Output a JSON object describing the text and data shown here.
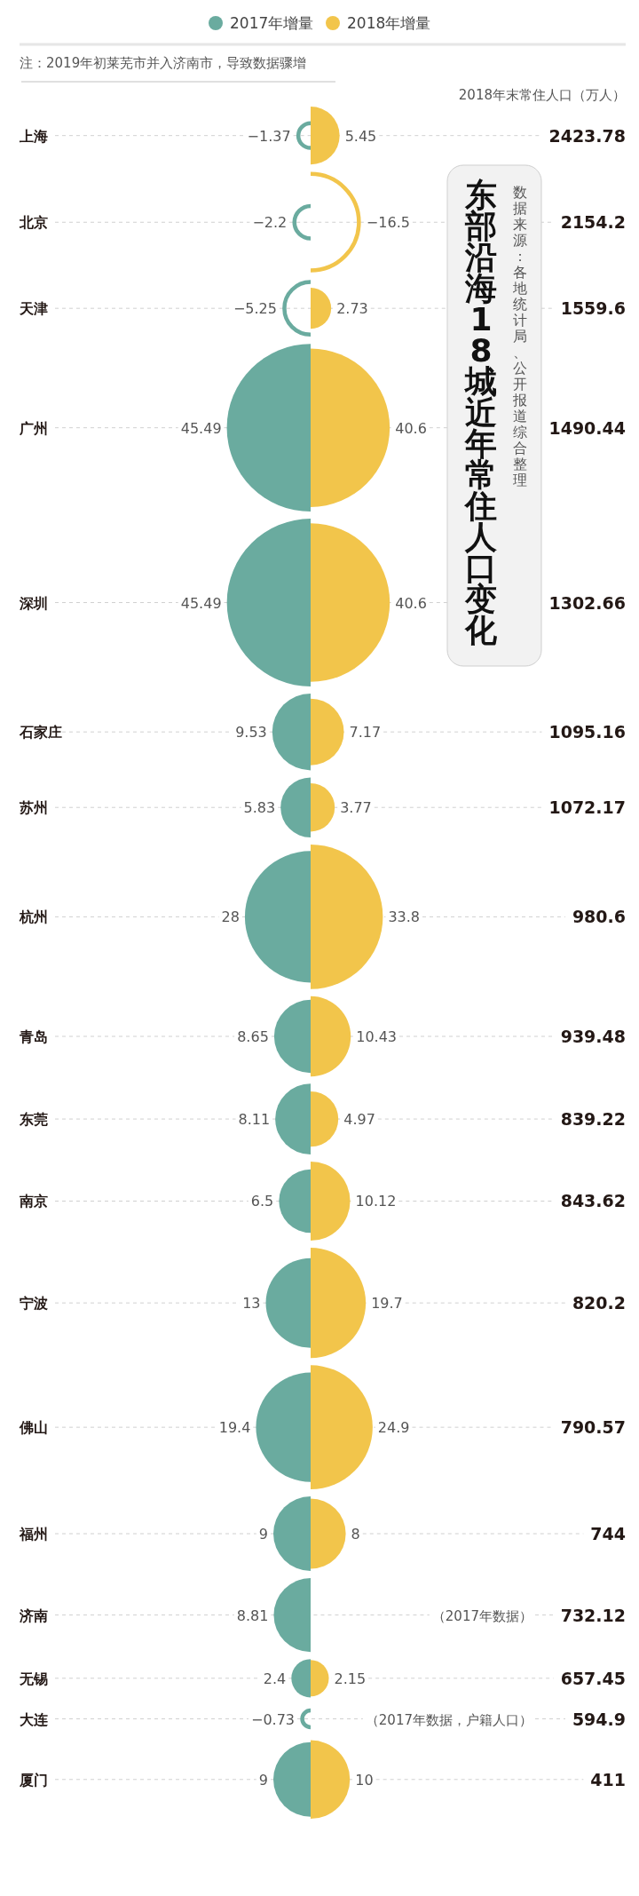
{
  "chart_data": {
    "type": "other",
    "title": "东部沿海18城近年常住人口变化",
    "legend": "top",
    "data_labels": true,
    "categories": [
      "上海",
      "北京",
      "天津",
      "广州",
      "深圳",
      "石家庄",
      "苏州",
      "杭州",
      "青岛",
      "东莞",
      "南京",
      "宁波",
      "佛山",
      "福州",
      "济南",
      "无锡",
      "大连",
      "厦门"
    ],
    "series": [
      {
        "name": "2017年增量",
        "color": "#6aab9f",
        "values": [
          -1.37,
          -2.2,
          -5.25,
          45.49,
          45.49,
          9.53,
          5.83,
          28,
          8.65,
          8.11,
          6.5,
          13,
          19.4,
          9,
          8.81,
          2.4,
          -0.73,
          9
        ]
      },
      {
        "name": "2018年增量",
        "color": "#f2c54b",
        "values": [
          5.45,
          -16.5,
          2.73,
          40.6,
          40.6,
          7.17,
          3.77,
          33.8,
          10.43,
          4.97,
          10.12,
          19.7,
          24.9,
          8,
          null,
          2.15,
          null,
          10
        ]
      },
      {
        "name": "2018年末常住人口（万人）",
        "values": [
          2423.78,
          2154.2,
          1559.6,
          1490.44,
          1302.66,
          1095.16,
          1072.17,
          980.6,
          939.48,
          839.22,
          843.62,
          820.2,
          790.57,
          744,
          732.12,
          657.45,
          594.9,
          411
        ]
      }
    ],
    "annotations": [
      "注：2019年初莱芜市并入济南市，导致数据骤增",
      "数据来源：各地统计局、公开报道综合整理",
      {
        "text": "（2017年数据）",
        "y": "济南"
      },
      {
        "text": "（2017年数据，户籍人口）",
        "y": "大连"
      }
    ]
  }
}
